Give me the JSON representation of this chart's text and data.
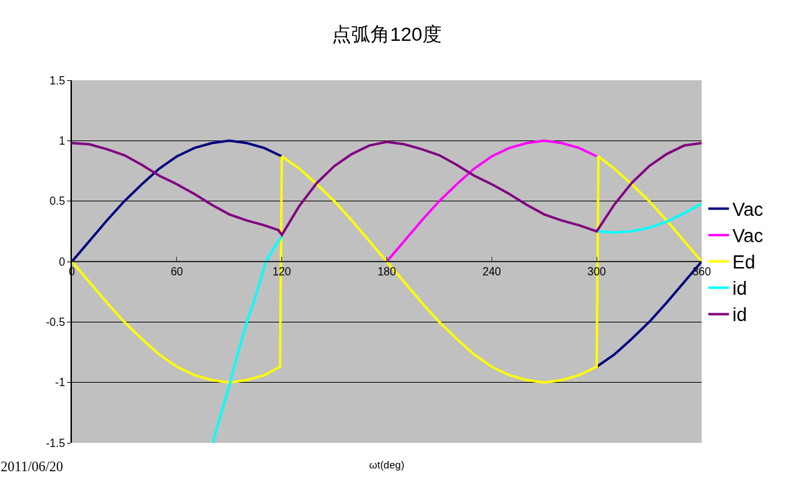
{
  "chart_data": {
    "type": "line",
    "title": "点弧角120度",
    "xlabel": "ωt(deg)",
    "annotations": [
      "2011/06/20"
    ],
    "xlim": [
      0,
      360
    ],
    "xticks": [
      0,
      60,
      120,
      180,
      240,
      300,
      360
    ],
    "ylim": [
      -1.5,
      1.5
    ],
    "yticks": [
      -1.5,
      -1,
      -0.5,
      0,
      0.5,
      1,
      1.5
    ],
    "grid": "y",
    "legend": "right",
    "marker": "none",
    "line_style": "solid",
    "series": [
      {
        "name": "Vac",
        "color": "#000080",
        "x": [
          0,
          10,
          20,
          30,
          40,
          50,
          60,
          70,
          80,
          90,
          100,
          110,
          120,
          210,
          300,
          310,
          320,
          330,
          340,
          350,
          360
        ],
        "values": [
          0,
          0.17,
          0.34,
          0.5,
          0.64,
          0.77,
          0.87,
          0.94,
          0.98,
          1,
          0.98,
          0.94,
          0.87,
          null,
          -0.87,
          -0.77,
          -0.64,
          -0.5,
          -0.34,
          -0.17,
          0
        ]
      },
      {
        "name": "Vac",
        "color": "#ff00ff",
        "x": [
          180,
          190,
          200,
          210,
          220,
          230,
          240,
          250,
          260,
          270,
          280,
          290,
          300
        ],
        "values": [
          0,
          0.17,
          0.34,
          0.5,
          0.64,
          0.77,
          0.87,
          0.94,
          0.98,
          1,
          0.98,
          0.94,
          0.87
        ]
      },
      {
        "name": "Ed",
        "color": "#ffff00",
        "x": [
          0,
          10,
          20,
          30,
          40,
          50,
          60,
          70,
          80,
          90,
          100,
          110,
          119,
          120,
          130,
          140,
          150,
          160,
          170,
          180,
          190,
          200,
          210,
          220,
          230,
          240,
          250,
          260,
          270,
          280,
          290,
          300,
          301,
          310,
          320,
          330,
          340,
          350,
          360
        ],
        "values": [
          0,
          -0.17,
          -0.34,
          -0.5,
          -0.64,
          -0.77,
          -0.87,
          -0.94,
          -0.98,
          -1,
          -0.98,
          -0.94,
          -0.87,
          0.87,
          0.77,
          0.64,
          0.5,
          0.34,
          0.17,
          0,
          -0.17,
          -0.34,
          -0.5,
          -0.64,
          -0.77,
          -0.87,
          -0.94,
          -0.98,
          -1,
          -0.98,
          -0.94,
          -0.87,
          0.87,
          0.77,
          0.64,
          0.5,
          0.34,
          0.17,
          0
        ]
      },
      {
        "name": "id",
        "color": "#00ffff",
        "x": [
          80.6,
          85,
          90.5,
          95,
          100,
          105,
          111,
          115,
          120,
          210,
          300,
          310,
          320,
          330,
          340,
          350,
          360
        ],
        "values": [
          -1.5,
          -1.27,
          -1,
          -0.75,
          -0.5,
          -0.29,
          0,
          0.1,
          0.21,
          null,
          0.25,
          0.24,
          0.25,
          0.28,
          0.33,
          0.4,
          0.48
        ]
      },
      {
        "name": "id",
        "color": "#800080",
        "x": [
          0,
          10,
          20,
          30,
          40,
          50,
          60,
          70,
          80,
          90,
          100,
          110,
          118,
          120,
          130,
          140,
          150,
          160,
          170,
          180,
          190,
          200,
          210,
          220,
          230,
          240,
          250,
          260,
          270,
          280,
          290,
          298,
          300,
          310,
          320,
          330,
          340,
          350,
          360
        ],
        "values": [
          0.98,
          0.97,
          0.93,
          0.88,
          0.8,
          0.71,
          0.64,
          0.56,
          0.47,
          0.39,
          0.34,
          0.3,
          0.26,
          0.22,
          0.46,
          0.65,
          0.79,
          0.89,
          0.96,
          0.99,
          0.97,
          0.93,
          0.88,
          0.8,
          0.71,
          0.64,
          0.56,
          0.47,
          0.39,
          0.34,
          0.3,
          0.26,
          0.25,
          0.47,
          0.65,
          0.79,
          0.89,
          0.96,
          0.98
        ]
      }
    ]
  }
}
